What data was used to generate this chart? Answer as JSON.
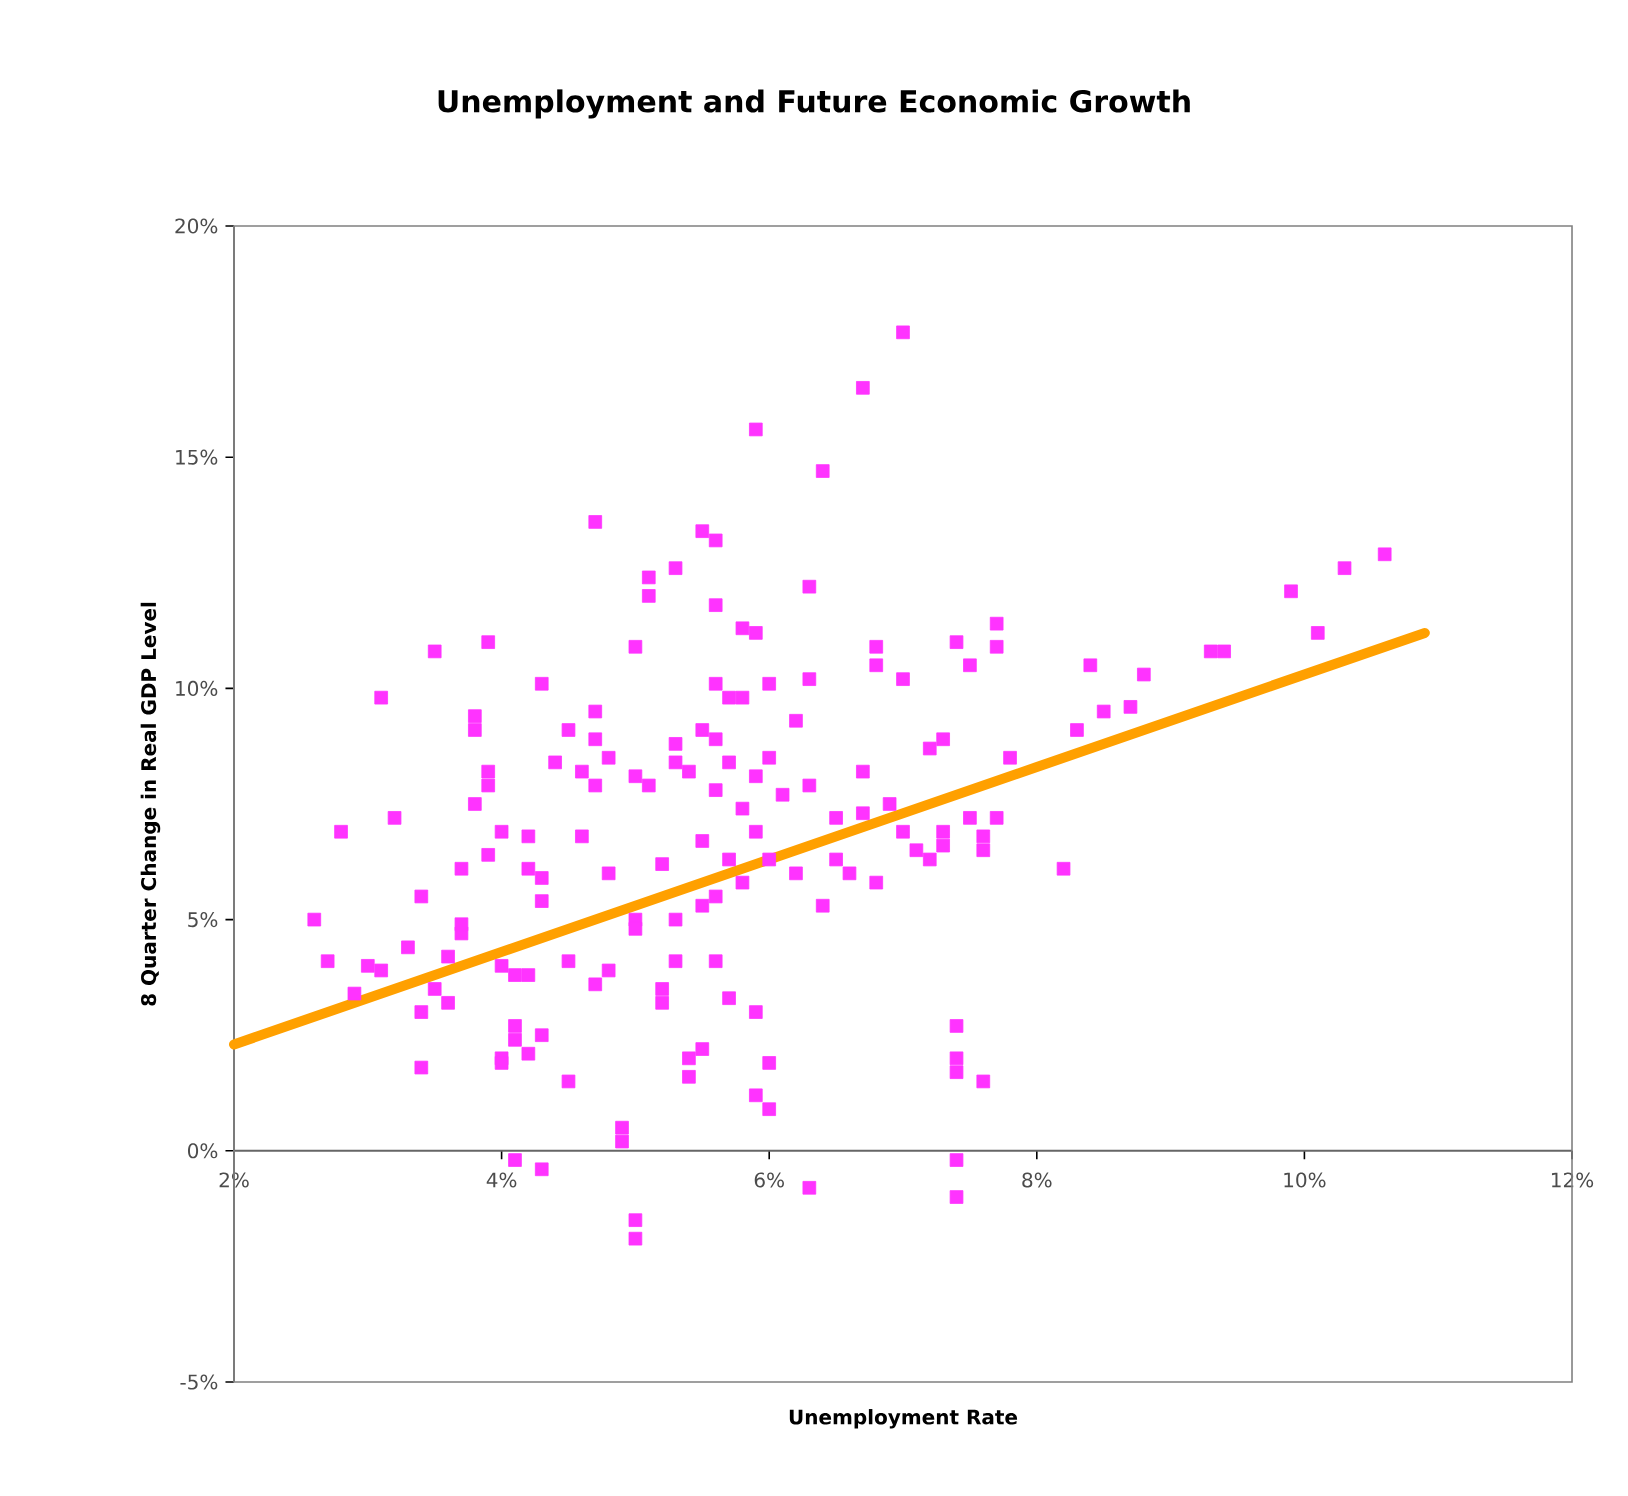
{
  "chart_data": {
    "type": "scatter",
    "title": "Unemployment and Future Economic Growth",
    "xlabel": "Unemployment Rate",
    "ylabel": "8 Quarter Change in Real GDP Level",
    "xlim": [
      2,
      12
    ],
    "ylim": [
      -5,
      20
    ],
    "xticks": [
      {
        "value": 2,
        "label": "2%"
      },
      {
        "value": 4,
        "label": "4%"
      },
      {
        "value": 6,
        "label": "6%"
      },
      {
        "value": 8,
        "label": "8%"
      },
      {
        "value": 10,
        "label": "10%"
      },
      {
        "value": 12,
        "label": "12%"
      }
    ],
    "yticks": [
      {
        "value": -5,
        "label": "-5%"
      },
      {
        "value": 0,
        "label": "0%"
      },
      {
        "value": 5,
        "label": "5%"
      },
      {
        "value": 10,
        "label": "10%"
      },
      {
        "value": 15,
        "label": "15%"
      },
      {
        "value": 20,
        "label": "20%"
      }
    ],
    "grid": false,
    "series": [
      {
        "marker": "square",
        "color": "#ff33ff",
        "x": [
          2.6,
          2.7,
          2.8,
          2.9,
          3.0,
          3.1,
          3.1,
          3.2,
          3.3,
          3.4,
          3.4,
          3.4,
          3.5,
          3.5,
          3.6,
          3.6,
          3.7,
          3.7,
          3.7,
          3.8,
          3.8,
          3.8,
          3.9,
          3.9,
          3.9,
          3.9,
          4.0,
          4.0,
          4.0,
          4.0,
          4.1,
          4.1,
          4.1,
          4.1,
          4.2,
          4.2,
          4.2,
          4.2,
          4.3,
          4.3,
          4.3,
          4.3,
          4.3,
          4.4,
          4.5,
          4.5,
          4.5,
          4.6,
          4.6,
          4.7,
          4.7,
          4.7,
          4.7,
          4.7,
          4.8,
          4.8,
          4.8,
          4.9,
          4.9,
          5.0,
          5.0,
          5.0,
          5.0,
          5.0,
          5.0,
          5.1,
          5.1,
          5.1,
          5.2,
          5.2,
          5.2,
          5.3,
          5.3,
          5.3,
          5.3,
          5.3,
          5.4,
          5.4,
          5.4,
          5.5,
          5.5,
          5.5,
          5.5,
          5.5,
          5.6,
          5.6,
          5.6,
          5.6,
          5.6,
          5.6,
          5.6,
          5.7,
          5.7,
          5.7,
          5.7,
          5.8,
          5.8,
          5.8,
          5.8,
          5.9,
          5.9,
          5.9,
          5.9,
          5.9,
          5.9,
          6.0,
          6.0,
          6.0,
          6.0,
          6.0,
          6.1,
          6.2,
          6.2,
          6.3,
          6.3,
          6.3,
          6.3,
          6.4,
          6.4,
          6.5,
          6.5,
          6.6,
          6.7,
          6.7,
          6.7,
          6.8,
          6.8,
          6.8,
          6.9,
          7.0,
          7.0,
          7.0,
          7.1,
          7.2,
          7.2,
          7.3,
          7.3,
          7.3,
          7.4,
          7.4,
          7.4,
          7.4,
          7.4,
          7.4,
          7.5,
          7.5,
          7.6,
          7.6,
          7.6,
          7.7,
          7.7,
          7.7,
          7.8,
          8.2,
          8.3,
          8.4,
          8.5,
          8.7,
          8.8,
          9.3,
          9.4,
          9.9,
          10.1,
          10.3,
          10.6
        ],
        "values": [
          5.0,
          4.1,
          6.9,
          3.4,
          4.0,
          3.9,
          9.8,
          7.2,
          4.4,
          5.5,
          3.0,
          1.8,
          10.8,
          3.5,
          3.2,
          4.2,
          6.1,
          4.7,
          4.9,
          9.1,
          9.4,
          7.5,
          8.2,
          7.9,
          11.0,
          6.4,
          6.9,
          4.0,
          2.0,
          1.9,
          2.7,
          2.4,
          3.8,
          -0.2,
          6.8,
          6.1,
          2.1,
          3.8,
          -0.4,
          5.9,
          5.4,
          10.1,
          2.5,
          8.4,
          9.1,
          4.1,
          1.5,
          8.2,
          6.8,
          7.9,
          13.6,
          9.5,
          8.9,
          3.6,
          6.0,
          3.9,
          8.5,
          0.5,
          0.2,
          10.9,
          8.1,
          5.0,
          4.8,
          -1.5,
          -1.9,
          12.4,
          12.0,
          7.9,
          6.2,
          3.5,
          3.2,
          12.6,
          8.4,
          8.8,
          5.0,
          4.1,
          8.2,
          1.6,
          2.0,
          13.4,
          9.1,
          6.7,
          5.3,
          2.2,
          13.2,
          11.8,
          10.1,
          8.9,
          7.8,
          5.5,
          4.1,
          9.8,
          8.4,
          6.3,
          3.3,
          11.3,
          9.8,
          7.4,
          5.8,
          15.6,
          11.2,
          8.1,
          6.9,
          3.0,
          1.2,
          10.1,
          8.5,
          6.3,
          1.9,
          0.9,
          7.7,
          9.3,
          6.0,
          12.2,
          10.2,
          7.9,
          -0.8,
          14.7,
          5.3,
          7.2,
          6.3,
          6.0,
          16.5,
          8.2,
          7.3,
          10.9,
          10.5,
          5.8,
          7.5,
          17.7,
          10.2,
          6.9,
          6.5,
          8.7,
          6.3,
          8.9,
          6.9,
          6.6,
          11.0,
          2.7,
          2.0,
          1.7,
          -0.2,
          -1.0,
          10.5,
          7.2,
          6.8,
          6.5,
          1.5,
          11.4,
          10.9,
          7.2,
          8.5,
          6.1,
          9.1,
          10.5,
          9.5,
          9.6,
          10.3,
          10.8,
          10.8,
          12.1,
          11.2,
          12.6,
          12.9
        ]
      },
      {
        "type": "line",
        "color": "#ffa000",
        "x": [
          2,
          10.9
        ],
        "values": [
          2.3,
          11.2
        ]
      }
    ]
  }
}
